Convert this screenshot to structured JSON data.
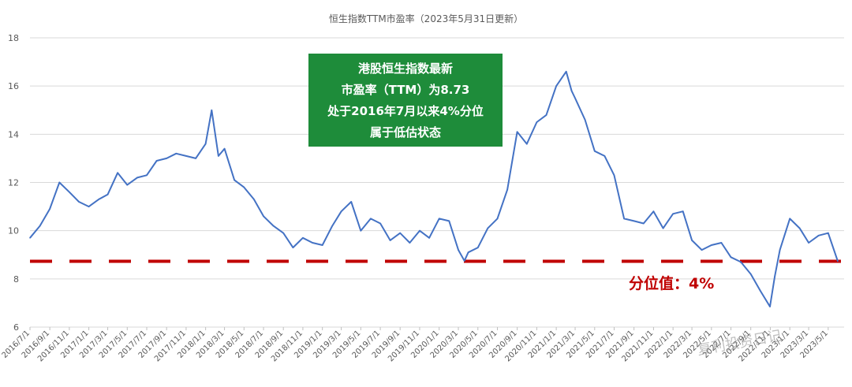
{
  "chart_data": {
    "type": "line",
    "title": "恒生指数TTM市盈率（2023年5月31日更新）",
    "ylim": [
      6,
      18
    ],
    "yticks": [
      "6",
      "8",
      "10",
      "12",
      "14",
      "16",
      "18"
    ],
    "xticks": [
      "2016/7/1",
      "2016/9/1",
      "2016/11/1",
      "2017/1/1",
      "2017/3/1",
      "2017/5/1",
      "2017/7/1",
      "2017/9/1",
      "2017/11/1",
      "2018/1/1",
      "2018/3/1",
      "2018/5/1",
      "2018/7/1",
      "2018/9/1",
      "2018/11/1",
      "2019/1/1",
      "2019/3/1",
      "2019/5/1",
      "2019/7/1",
      "2019/9/1",
      "2019/11/1",
      "2020/1/1",
      "2020/3/1",
      "2020/5/1",
      "2020/7/1",
      "2020/9/1",
      "2020/11/1",
      "2021/1/1",
      "2021/3/1",
      "2021/5/1",
      "2021/7/1",
      "2021/9/1",
      "2021/11/1",
      "2022/1/1",
      "2022/3/1",
      "2022/5/1",
      "2022/7/1",
      "2022/9/1",
      "2022/11/1",
      "2023/1/1",
      "2023/3/1",
      "2023/5/1"
    ],
    "grid": true,
    "series": [
      {
        "color": "#4472c4",
        "x": [
          "2016/7/1",
          "2016/8/1",
          "2016/9/1",
          "2016/10/1",
          "2016/11/1",
          "2016/12/1",
          "2017/1/1",
          "2017/2/1",
          "2017/3/1",
          "2017/4/1",
          "2017/5/1",
          "2017/6/1",
          "2017/7/1",
          "2017/8/1",
          "2017/9/1",
          "2017/10/1",
          "2017/11/1",
          "2017/12/1",
          "2018/1/1",
          "2018/1/20",
          "2018/2/10",
          "2018/3/1",
          "2018/4/1",
          "2018/5/1",
          "2018/6/1",
          "2018/7/1",
          "2018/8/1",
          "2018/9/1",
          "2018/10/1",
          "2018/11/1",
          "2018/12/1",
          "2019/1/1",
          "2019/2/1",
          "2019/3/1",
          "2019/4/1",
          "2019/5/1",
          "2019/6/1",
          "2019/7/1",
          "2019/8/1",
          "2019/9/1",
          "2019/10/1",
          "2019/11/1",
          "2019/12/1",
          "2020/1/1",
          "2020/2/1",
          "2020/3/1",
          "2020/3/20",
          "2020/4/1",
          "2020/5/1",
          "2020/6/1",
          "2020/7/1",
          "2020/8/1",
          "2020/9/1",
          "2020/10/1",
          "2020/11/1",
          "2020/12/1",
          "2021/1/1",
          "2021/2/1",
          "2021/2/18",
          "2021/3/1",
          "2021/4/1",
          "2021/5/1",
          "2021/6/1",
          "2021/7/1",
          "2021/8/1",
          "2021/9/1",
          "2021/10/1",
          "2021/11/1",
          "2021/12/1",
          "2022/1/1",
          "2022/2/1",
          "2022/3/1",
          "2022/4/1",
          "2022/5/1",
          "2022/6/1",
          "2022/7/1",
          "2022/8/1",
          "2022/9/1",
          "2022/10/1",
          "2022/10/31",
          "2022/11/15",
          "2022/12/1",
          "2023/1/1",
          "2023/2/1",
          "2023/3/1",
          "2023/4/1",
          "2023/5/1",
          "2023/5/31"
        ],
        "values": [
          9.7,
          10.2,
          10.9,
          12.0,
          11.6,
          11.2,
          11.0,
          11.3,
          11.5,
          12.4,
          11.9,
          12.2,
          12.3,
          12.9,
          13.0,
          13.2,
          13.1,
          13.0,
          13.6,
          15.0,
          13.1,
          13.4,
          12.1,
          11.8,
          11.3,
          10.6,
          10.2,
          9.9,
          9.3,
          9.7,
          9.5,
          9.4,
          10.2,
          10.8,
          11.2,
          10.0,
          10.5,
          10.3,
          9.6,
          9.9,
          9.5,
          10.0,
          9.7,
          10.5,
          10.4,
          9.2,
          8.75,
          9.1,
          9.3,
          10.1,
          10.5,
          11.7,
          14.1,
          13.6,
          14.5,
          14.8,
          16.0,
          16.6,
          15.8,
          15.5,
          14.6,
          13.3,
          13.1,
          12.3,
          10.5,
          10.4,
          10.3,
          10.8,
          10.1,
          10.7,
          10.8,
          9.6,
          9.2,
          9.4,
          9.5,
          8.9,
          8.7,
          8.2,
          7.5,
          6.85,
          8.1,
          9.2,
          10.5,
          10.1,
          9.5,
          9.8,
          9.9,
          8.73
        ]
      }
    ],
    "reference_line": {
      "value": 8.73,
      "color": "#c00000"
    },
    "callout": {
      "lines": [
        "港股恒生指数最新",
        "市盈率（TTM）为8.73",
        "处于2016年7月以来4%分位",
        "属于低估状态"
      ],
      "bg_color": "#1e8c3a"
    },
    "percentile_label": "分位值：4%",
    "watermark": "复利投资日记"
  }
}
